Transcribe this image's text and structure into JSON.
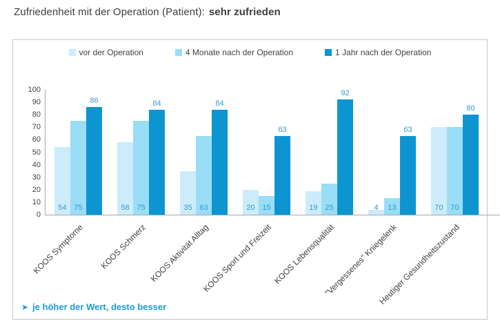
{
  "title": {
    "prefix": "Zufriedenheit mit der Operation (Patient):",
    "highlight": "sehr zufrieden"
  },
  "footer": {
    "arrow": "➤",
    "text": "je höher der Wert, desto besser"
  },
  "colors": {
    "series": [
      "#cdecfb",
      "#9addf7",
      "#0d95d2"
    ],
    "value_label": "#2f9cc7",
    "highlight_text": "#189cd8",
    "axis_line": "#a6a6a6",
    "box_border": "#c6c6c6",
    "title_text": "#3d3d3d"
  },
  "chart_data": {
    "type": "bar",
    "categories": [
      "KOOS Symptome",
      "KOOS Schmerz",
      "KOOS Aktivität Alltag",
      "KOOS Sport und Freizeit",
      "KOOS Lebensqualität",
      "\"Vergessenes\" Kniegelenk",
      "Heutiger Gesundheitszustand"
    ],
    "series": [
      {
        "name": "vor der Operation",
        "values": [
          54,
          58,
          35,
          20,
          19,
          4,
          70
        ]
      },
      {
        "name": "4 Monate nach der Operation",
        "values": [
          75,
          75,
          63,
          15,
          25,
          13,
          70
        ]
      },
      {
        "name": "1 Jahr nach der Operation",
        "values": [
          86,
          84,
          84,
          63,
          92,
          63,
          80
        ]
      }
    ],
    "ylim": [
      0,
      100
    ],
    "yticks": [
      0,
      10,
      20,
      30,
      40,
      50,
      60,
      70,
      80,
      90,
      100
    ],
    "grid": false,
    "legend_position": "top",
    "value_labels": "series 1-2 at bar base, series 3 above bar top"
  }
}
